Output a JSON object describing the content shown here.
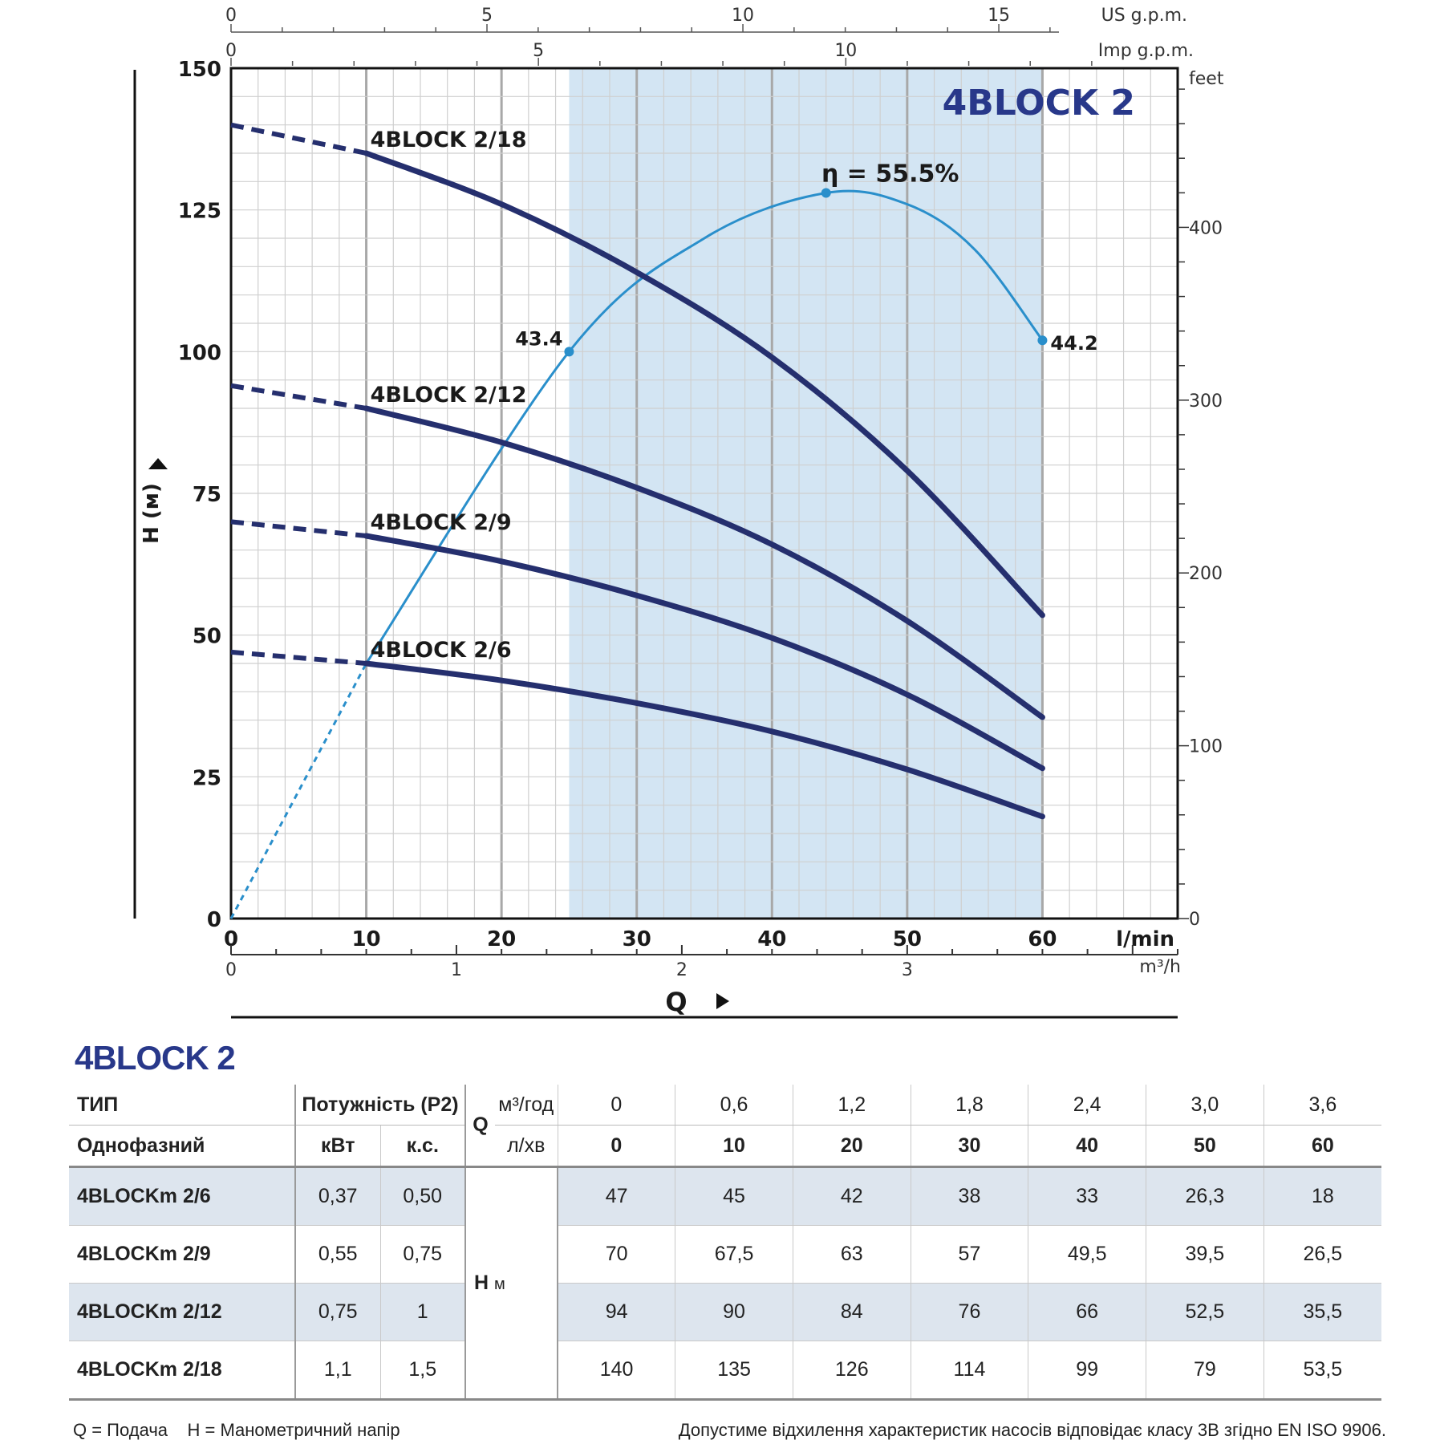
{
  "chart_data": {
    "type": "line",
    "title": "4BLOCK 2",
    "ylabel": "H (м)",
    "xlabel": "Q",
    "y_ticks": [
      "0",
      "25",
      "50",
      "75",
      "100",
      "125",
      "150"
    ],
    "x_ticks": [
      "0",
      "10",
      "20",
      "30",
      "40",
      "50",
      "60"
    ],
    "x_unit": "l/min",
    "ylim": [
      0,
      150
    ],
    "xlim": [
      0,
      70
    ],
    "top_axis_us": {
      "ticks": [
        "0",
        "5",
        "10",
        "15"
      ],
      "unit": "US g.p.m."
    },
    "top_axis_imp": {
      "ticks": [
        "0",
        "5",
        "10"
      ],
      "unit": "Imp g.p.m."
    },
    "right_axis": {
      "ticks": [
        "0",
        "100",
        "200",
        "300",
        "400"
      ],
      "unit": "feet"
    },
    "bottom_axis_m3h": {
      "ticks": [
        "0",
        "1",
        "2",
        "3"
      ],
      "unit": "m³/h"
    },
    "recommended_range_lpm": [
      25,
      60
    ],
    "series": [
      {
        "name": "4BLOCK 2/18",
        "x": [
          0,
          10,
          20,
          30,
          40,
          50,
          60
        ],
        "values": [
          140,
          135,
          126,
          114,
          99,
          79,
          53.5
        ]
      },
      {
        "name": "4BLOCK 2/12",
        "x": [
          0,
          10,
          20,
          30,
          40,
          50,
          60
        ],
        "values": [
          94,
          90,
          84,
          76,
          66,
          52.5,
          35.5
        ]
      },
      {
        "name": "4BLOCK 2/9",
        "x": [
          0,
          10,
          20,
          30,
          40,
          50,
          60
        ],
        "values": [
          70,
          67.5,
          63,
          57,
          49.5,
          39.5,
          26.5
        ]
      },
      {
        "name": "4BLOCK 2/6",
        "x": [
          0,
          10,
          20,
          30,
          40,
          50,
          60
        ],
        "values": [
          47,
          45,
          42,
          38,
          33,
          26.3,
          18
        ]
      }
    ],
    "efficiency": {
      "x": [
        0,
        10,
        25,
        35,
        44,
        50,
        55,
        60
      ],
      "values": [
        0,
        45,
        100,
        120,
        128,
        126,
        118,
        102
      ],
      "points": [
        {
          "x": 25,
          "y": 100,
          "label": "43.4"
        },
        {
          "x": 44,
          "y": 128,
          "label": "η = 55.5%"
        },
        {
          "x": 60,
          "y": 102,
          "label": "44.2"
        }
      ]
    },
    "colors": {
      "curve": "#252f6e",
      "efficiency": "#2a8fcb",
      "band": "#d3e5f3",
      "title": "#28388a"
    }
  },
  "table": {
    "title": "4BLOCK 2",
    "header": {
      "type_label": "ТИП",
      "phase_label": "Однофазний",
      "power_label": "Потужність (P2)",
      "kw_label": "кВт",
      "hp_label": "к.с.",
      "q_label": "Q",
      "m3_unit": "м³/год",
      "lpm_unit": "л/хв",
      "m3_values": [
        "0",
        "0,6",
        "1,2",
        "1,8",
        "2,4",
        "3,0",
        "3,6"
      ],
      "lpm_values": [
        "0",
        "10",
        "20",
        "30",
        "40",
        "50",
        "60"
      ]
    },
    "h_label": "H",
    "h_unit": "м",
    "rows": [
      {
        "model": "4BLOCKm 2/6",
        "kw": "0,37",
        "hp": "0,50",
        "h": [
          "47",
          "45",
          "42",
          "38",
          "33",
          "26,3",
          "18"
        ]
      },
      {
        "model": "4BLOCKm 2/9",
        "kw": "0,55",
        "hp": "0,75",
        "h": [
          "70",
          "67,5",
          "63",
          "57",
          "49,5",
          "39,5",
          "26,5"
        ]
      },
      {
        "model": "4BLOCKm 2/12",
        "kw": "0,75",
        "hp": "1",
        "h": [
          "94",
          "90",
          "84",
          "76",
          "66",
          "52,5",
          "35,5"
        ]
      },
      {
        "model": "4BLOCKm 2/18",
        "kw": "1,1",
        "hp": "1,5",
        "h": [
          "140",
          "135",
          "126",
          "114",
          "99",
          "79",
          "53,5"
        ]
      }
    ]
  },
  "footer": {
    "left": "Q = Подача    H = Манометричний напір",
    "right": "Допустиме відхилення характеристик насосів відповідає класу 3B згідно EN ISO 9906."
  }
}
